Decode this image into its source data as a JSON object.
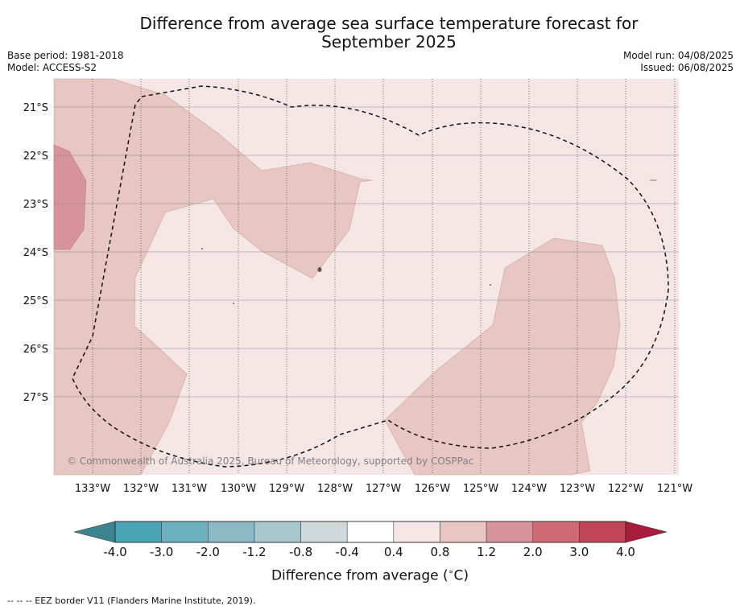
{
  "title_line1": "Difference from average sea surface temperature forecast for",
  "title_line2": "September 2025",
  "meta_left": [
    "Base period: 1981-2018",
    "Model: ACCESS-S2"
  ],
  "meta_right": [
    "Model run: 04/08/2025",
    "Issued: 06/08/2025"
  ],
  "copyright": "© Commonwealth of Australia 2025, Bureau of Meteorology, supported by COSPPac",
  "map": {
    "lon_range": [
      -133.8,
      -120.9
    ],
    "lat_range": [
      -28.6,
      -20.4
    ],
    "lat_ticks": [
      "21°S",
      "22°S",
      "23°S",
      "24°S",
      "25°S",
      "26°S",
      "27°S"
    ],
    "lon_ticks": [
      "133°W",
      "132°W",
      "131°W",
      "130°W",
      "129°W",
      "128°W",
      "127°W",
      "126°W",
      "125°W",
      "124°W",
      "123°W",
      "122°W",
      "121°W"
    ],
    "background_class": "0.4 to 0.8",
    "anomaly_classes_present": [
      "0.4 to 0.8",
      "0.8 to 1.2",
      "1.2 to 2.0"
    ]
  },
  "colorbar": {
    "labels": [
      "-4.0",
      "-3.0",
      "-2.0",
      "-1.2",
      "-0.8",
      "-0.4",
      "0.4",
      "0.8",
      "1.2",
      "2.0",
      "3.0",
      "4.0"
    ],
    "colors": [
      "#4aa4b4",
      "#6cafbd",
      "#8bb9c5",
      "#a9c8cd",
      "#cfd8da",
      "#ffffff",
      "#f4e6e4",
      "#e8c6c2",
      "#d7939a",
      "#cd6a74",
      "#c04558"
    ],
    "under_color": "#3a8590",
    "over_color": "#a81c3c",
    "title": "Difference from average (",
    "title_unit": "C)"
  },
  "footnote": "-- -- -- EEZ border V11 (Flanders Marine Institute, 2019)."
}
